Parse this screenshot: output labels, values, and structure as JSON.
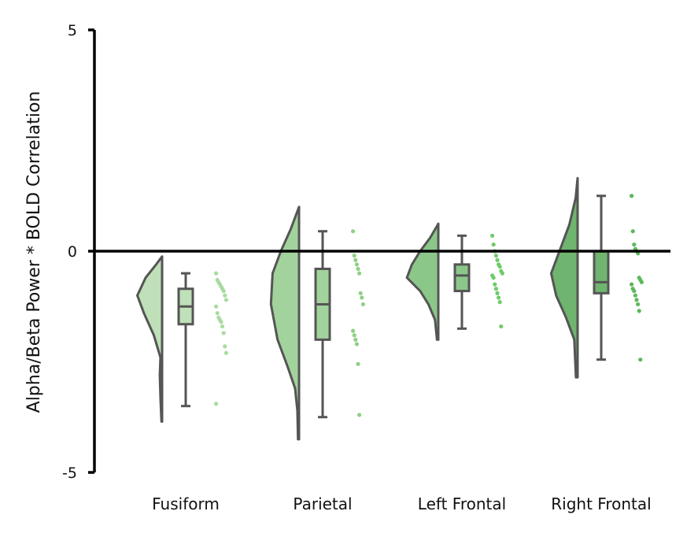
{
  "chart_data": {
    "type": "raincloud",
    "ylabel": "Alpha/Beta Power * BOLD Correlation",
    "ylim": [
      -5,
      5
    ],
    "yticks": [
      -5,
      0,
      5
    ],
    "ytick_labels": [
      "-5",
      "0",
      "5"
    ],
    "reference_line_y": 0,
    "categories": [
      "Fusiform",
      "Parietal",
      "Left Frontal",
      "Right Frontal"
    ],
    "grid": false,
    "legend": "none",
    "series": [
      {
        "category": "Fusiform",
        "color": "#bfe0b8",
        "point_color": "#a9dba0",
        "box": {
          "whisker_low": -3.5,
          "q1": -1.65,
          "median": -1.25,
          "q3": -0.85,
          "whisker_high": -0.5
        },
        "violin": [
          [
            -0.12,
            0.0
          ],
          [
            -0.3,
            0.18
          ],
          [
            -0.6,
            0.5
          ],
          [
            -1.0,
            0.75
          ],
          [
            -1.4,
            0.55
          ],
          [
            -1.9,
            0.25
          ],
          [
            -2.4,
            0.05
          ],
          [
            -2.8,
            0.07
          ],
          [
            -3.3,
            0.05
          ],
          [
            -3.85,
            0.02
          ]
        ],
        "points": [
          -0.5,
          -0.65,
          -0.7,
          -0.75,
          -0.8,
          -0.85,
          -0.9,
          -1.0,
          -1.1,
          -1.25,
          -1.4,
          -1.5,
          -1.55,
          -1.6,
          -1.7,
          -1.85,
          -2.15,
          -2.3,
          -3.45
        ]
      },
      {
        "category": "Parietal",
        "color": "#a3d39c",
        "point_color": "#8fd085",
        "box": {
          "whisker_low": -3.75,
          "q1": -2.0,
          "median": -1.2,
          "q3": -0.4,
          "whisker_high": 0.45
        },
        "violin": [
          [
            1.0,
            0.0
          ],
          [
            0.5,
            0.25
          ],
          [
            0.0,
            0.55
          ],
          [
            -0.5,
            0.8
          ],
          [
            -1.2,
            0.85
          ],
          [
            -2.0,
            0.65
          ],
          [
            -2.6,
            0.35
          ],
          [
            -3.1,
            0.12
          ],
          [
            -3.6,
            0.05
          ],
          [
            -4.25,
            0.03
          ]
        ],
        "points": [
          0.45,
          -0.1,
          -0.2,
          -0.3,
          -0.4,
          -0.5,
          -0.95,
          -1.05,
          -1.2,
          -1.8,
          -1.9,
          -2.0,
          -2.1,
          -2.55,
          -3.7
        ]
      },
      {
        "category": "Left Frontal",
        "color": "#8cc78a",
        "point_color": "#6fcb6a",
        "box": {
          "whisker_low": -1.75,
          "q1": -0.9,
          "median": -0.55,
          "q3": -0.3,
          "whisker_high": 0.35
        },
        "violin": [
          [
            0.62,
            0.0
          ],
          [
            0.3,
            0.25
          ],
          [
            0.0,
            0.55
          ],
          [
            -0.3,
            0.8
          ],
          [
            -0.6,
            0.95
          ],
          [
            -0.9,
            0.55
          ],
          [
            -1.2,
            0.3
          ],
          [
            -1.55,
            0.1
          ],
          [
            -2.0,
            0.04
          ]
        ],
        "points": [
          0.35,
          0.15,
          0.0,
          -0.1,
          -0.2,
          -0.3,
          -0.35,
          -0.45,
          -0.5,
          -0.55,
          -0.6,
          -0.75,
          -0.85,
          -0.95,
          -1.05,
          -1.15,
          -1.7
        ]
      },
      {
        "category": "Right Frontal",
        "color": "#6fb46f",
        "point_color": "#5cb85c",
        "box": {
          "whisker_low": -2.45,
          "q1": -0.95,
          "median": -0.7,
          "q3": 0.0,
          "whisker_high": 1.25
        },
        "violin": [
          [
            1.65,
            0.0
          ],
          [
            1.2,
            0.06
          ],
          [
            0.6,
            0.25
          ],
          [
            0.0,
            0.55
          ],
          [
            -0.5,
            0.8
          ],
          [
            -1.0,
            0.65
          ],
          [
            -1.5,
            0.35
          ],
          [
            -2.0,
            0.1
          ],
          [
            -2.85,
            0.05
          ]
        ],
        "points": [
          1.25,
          0.45,
          0.15,
          0.05,
          0.0,
          -0.05,
          -0.6,
          -0.65,
          -0.7,
          -0.75,
          -0.85,
          -0.9,
          -1.0,
          -1.1,
          -1.2,
          -1.35,
          -2.45
        ]
      }
    ]
  }
}
